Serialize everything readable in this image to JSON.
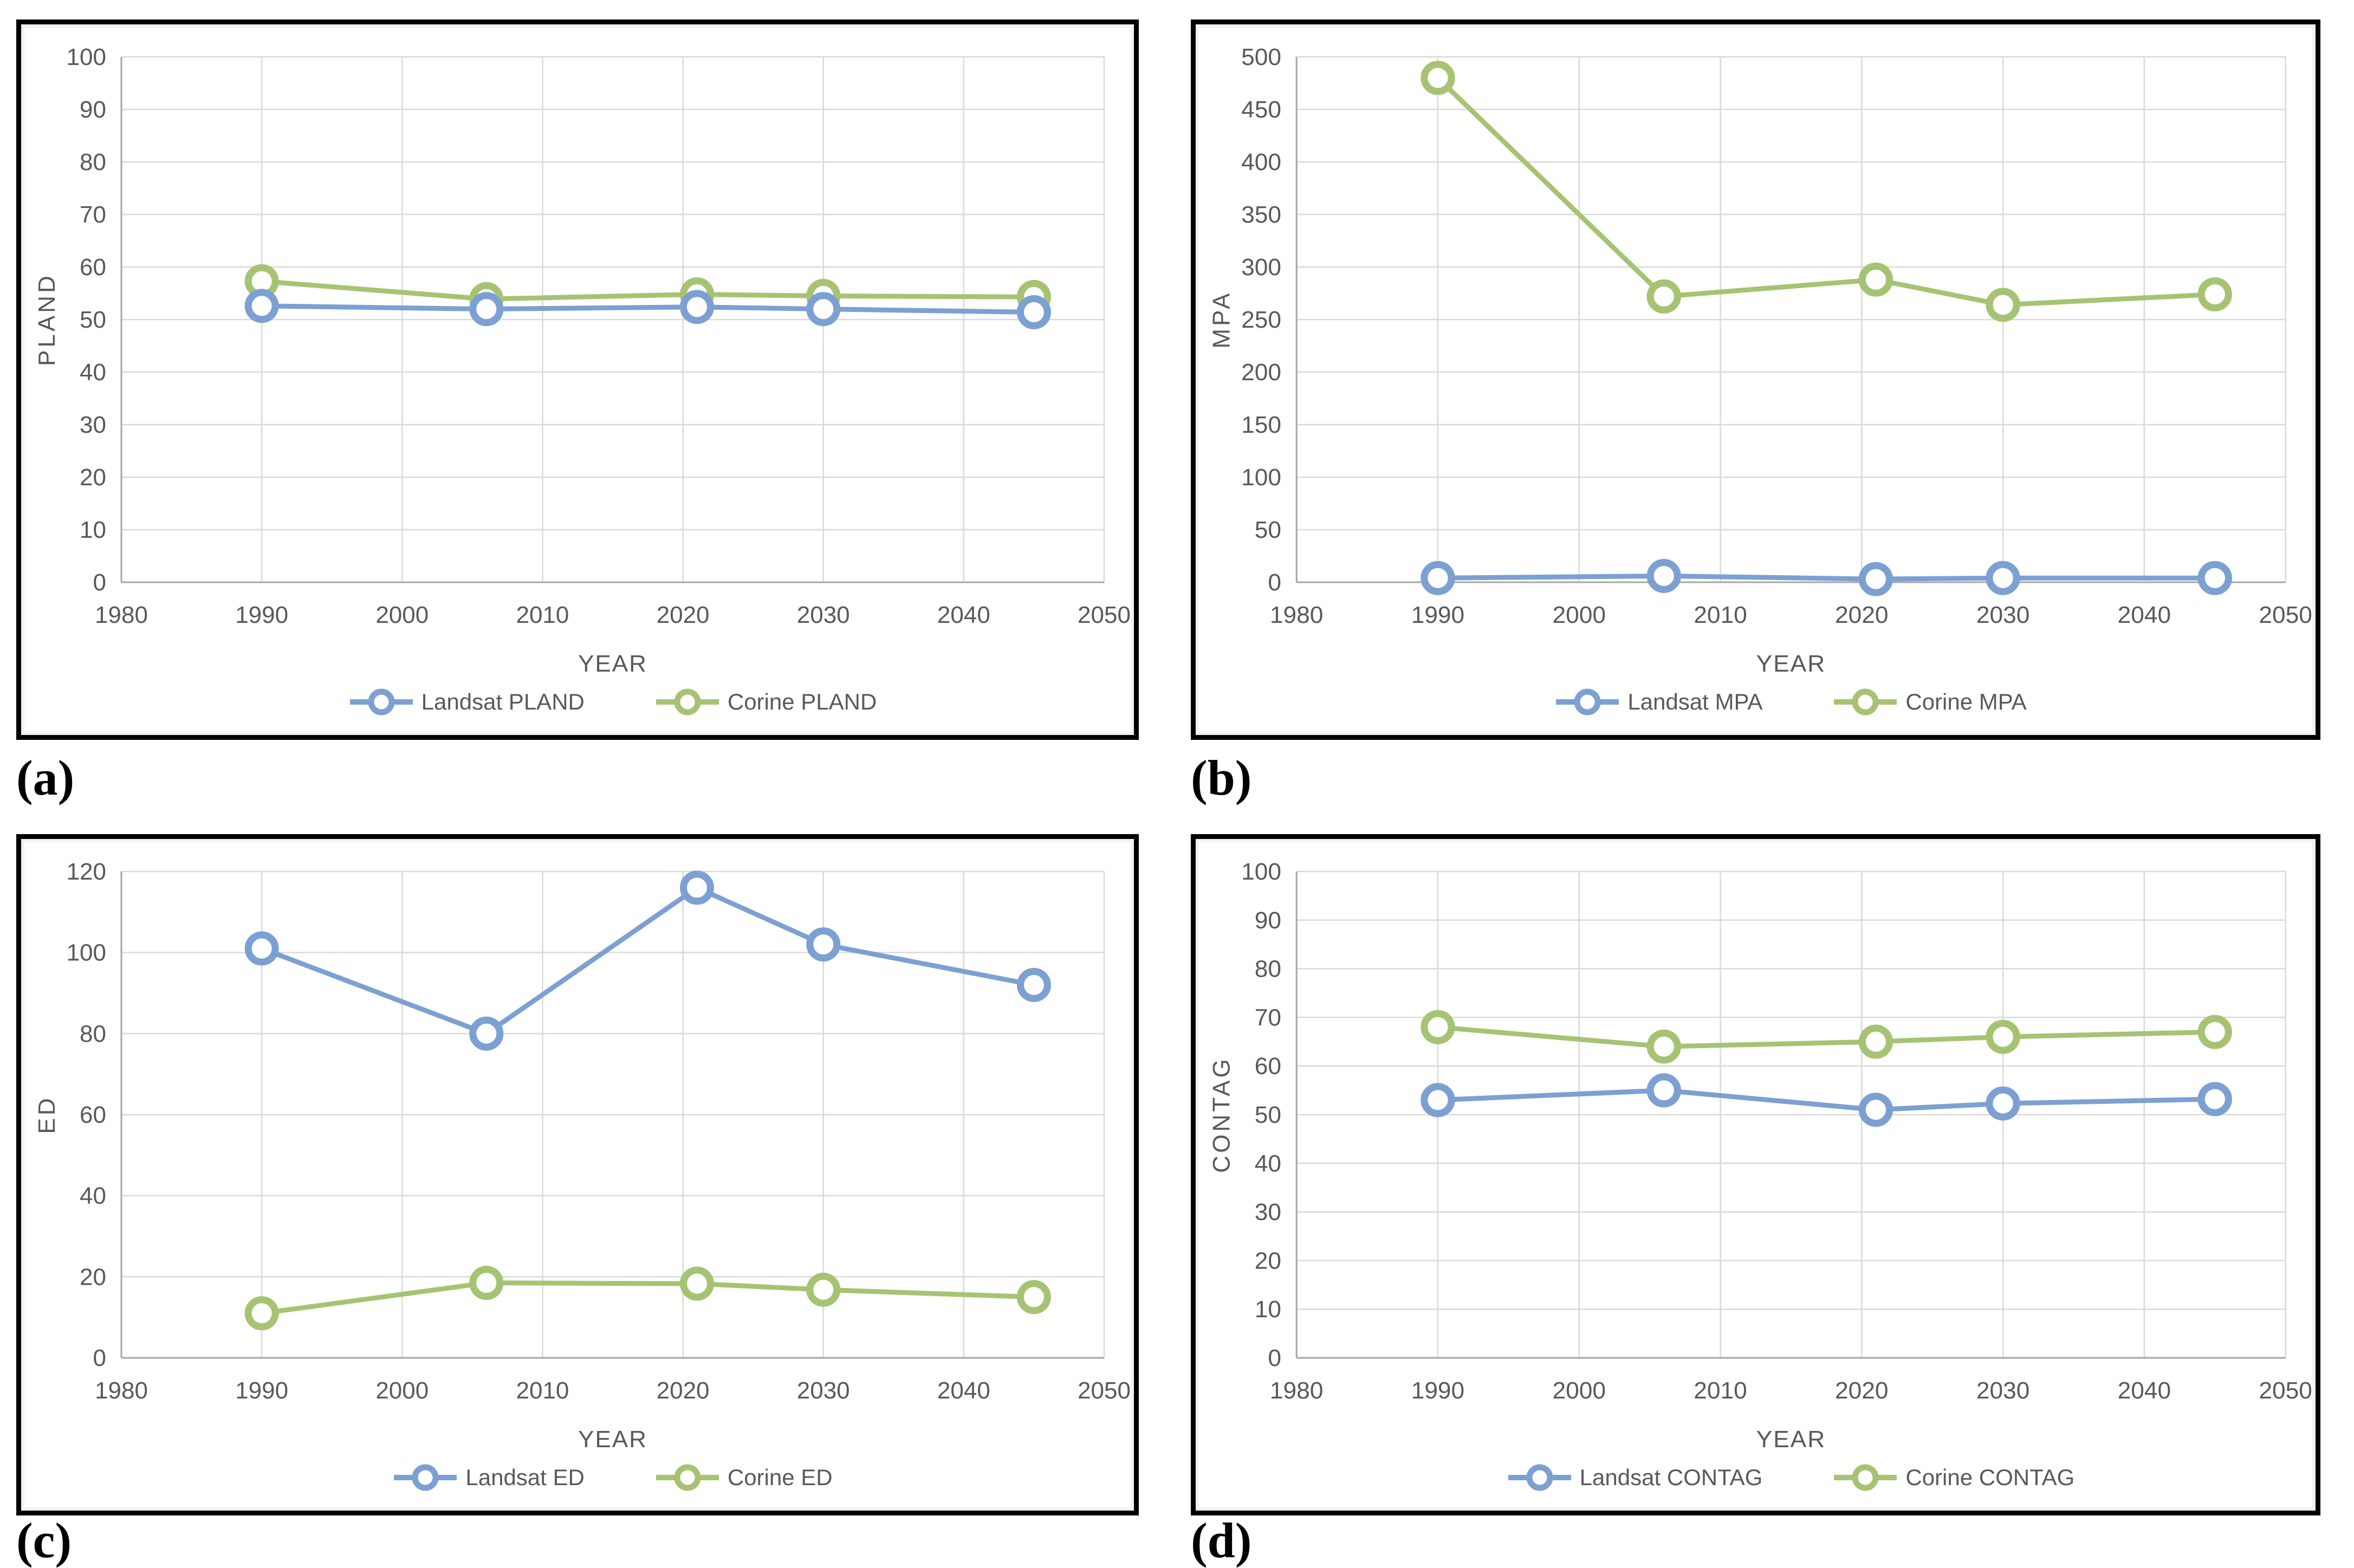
{
  "figure": {
    "captions": {
      "a": "(a)",
      "b": "(b)",
      "c": "(c)",
      "d": "(d)"
    }
  },
  "colors": {
    "landsat": "#7CA0D2",
    "corine": "#A6C373",
    "text": "#595959",
    "grid": "#D9D9D9",
    "axis": "#A6A6A6",
    "panel_border": "#000000",
    "marker_fill": "#FFFFFF"
  },
  "chart_data": [
    {
      "id": "a",
      "type": "line",
      "title": "",
      "xlabel": "YEAR",
      "ylabel": "PLAND",
      "x": [
        1990,
        2006,
        2021,
        2030,
        2045
      ],
      "xlim": [
        1980,
        2050
      ],
      "xticks": [
        1980,
        1990,
        2000,
        2010,
        2020,
        2030,
        2040,
        2050
      ],
      "ylim": [
        0,
        100
      ],
      "yticks": [
        0,
        10,
        20,
        30,
        40,
        50,
        60,
        70,
        80,
        90,
        100
      ],
      "grid": true,
      "legend_position": "bottom",
      "series": [
        {
          "name": "Landsat PLAND",
          "color_key": "landsat",
          "values": [
            52.6,
            52.0,
            52.4,
            52.0,
            51.4
          ]
        },
        {
          "name": "Corine PLAND",
          "color_key": "corine",
          "values": [
            57.3,
            53.9,
            54.8,
            54.5,
            54.3
          ]
        }
      ]
    },
    {
      "id": "b",
      "type": "line",
      "title": "",
      "xlabel": "YEAR",
      "ylabel": "MPA",
      "x": [
        1990,
        2006,
        2021,
        2030,
        2045
      ],
      "xlim": [
        1980,
        2050
      ],
      "xticks": [
        1980,
        1990,
        2000,
        2010,
        2020,
        2030,
        2040,
        2050
      ],
      "ylim": [
        0,
        500
      ],
      "yticks": [
        0,
        50,
        100,
        150,
        200,
        250,
        300,
        350,
        400,
        450,
        500
      ],
      "grid": true,
      "legend_position": "bottom",
      "series": [
        {
          "name": "Landsat MPA",
          "color_key": "landsat",
          "values": [
            4,
            6,
            3,
            4,
            4
          ]
        },
        {
          "name": "Corine MPA",
          "color_key": "corine",
          "values": [
            480,
            272,
            288,
            264,
            274
          ]
        }
      ]
    },
    {
      "id": "c",
      "type": "line",
      "title": "",
      "xlabel": "YEAR",
      "ylabel": "ED",
      "x": [
        1990,
        2006,
        2021,
        2030,
        2045
      ],
      "xlim": [
        1980,
        2050
      ],
      "xticks": [
        1980,
        1990,
        2000,
        2010,
        2020,
        2030,
        2040,
        2050
      ],
      "ylim": [
        0,
        120
      ],
      "yticks": [
        0,
        20,
        40,
        60,
        80,
        100,
        120
      ],
      "grid": true,
      "legend_position": "bottom",
      "series": [
        {
          "name": "Landsat ED",
          "color_key": "landsat",
          "values": [
            101,
            80,
            116,
            102,
            92
          ]
        },
        {
          "name": "Corine ED",
          "color_key": "corine",
          "values": [
            11,
            18.5,
            18.3,
            16.8,
            15
          ]
        }
      ]
    },
    {
      "id": "d",
      "type": "line",
      "title": "",
      "xlabel": "YEAR",
      "ylabel": "CONTAG",
      "x": [
        1990,
        2006,
        2021,
        2030,
        2045
      ],
      "xlim": [
        1980,
        2050
      ],
      "xticks": [
        1980,
        1990,
        2000,
        2010,
        2020,
        2030,
        2040,
        2050
      ],
      "ylim": [
        0,
        100
      ],
      "yticks": [
        0,
        10,
        20,
        30,
        40,
        50,
        60,
        70,
        80,
        90,
        100
      ],
      "grid": true,
      "legend_position": "bottom",
      "series": [
        {
          "name": "Landsat CONTAG",
          "color_key": "landsat",
          "values": [
            53,
            55,
            51,
            52.3,
            53.2
          ]
        },
        {
          "name": "Corine CONTAG",
          "color_key": "corine",
          "values": [
            68,
            64,
            65,
            66,
            67
          ]
        }
      ]
    }
  ]
}
